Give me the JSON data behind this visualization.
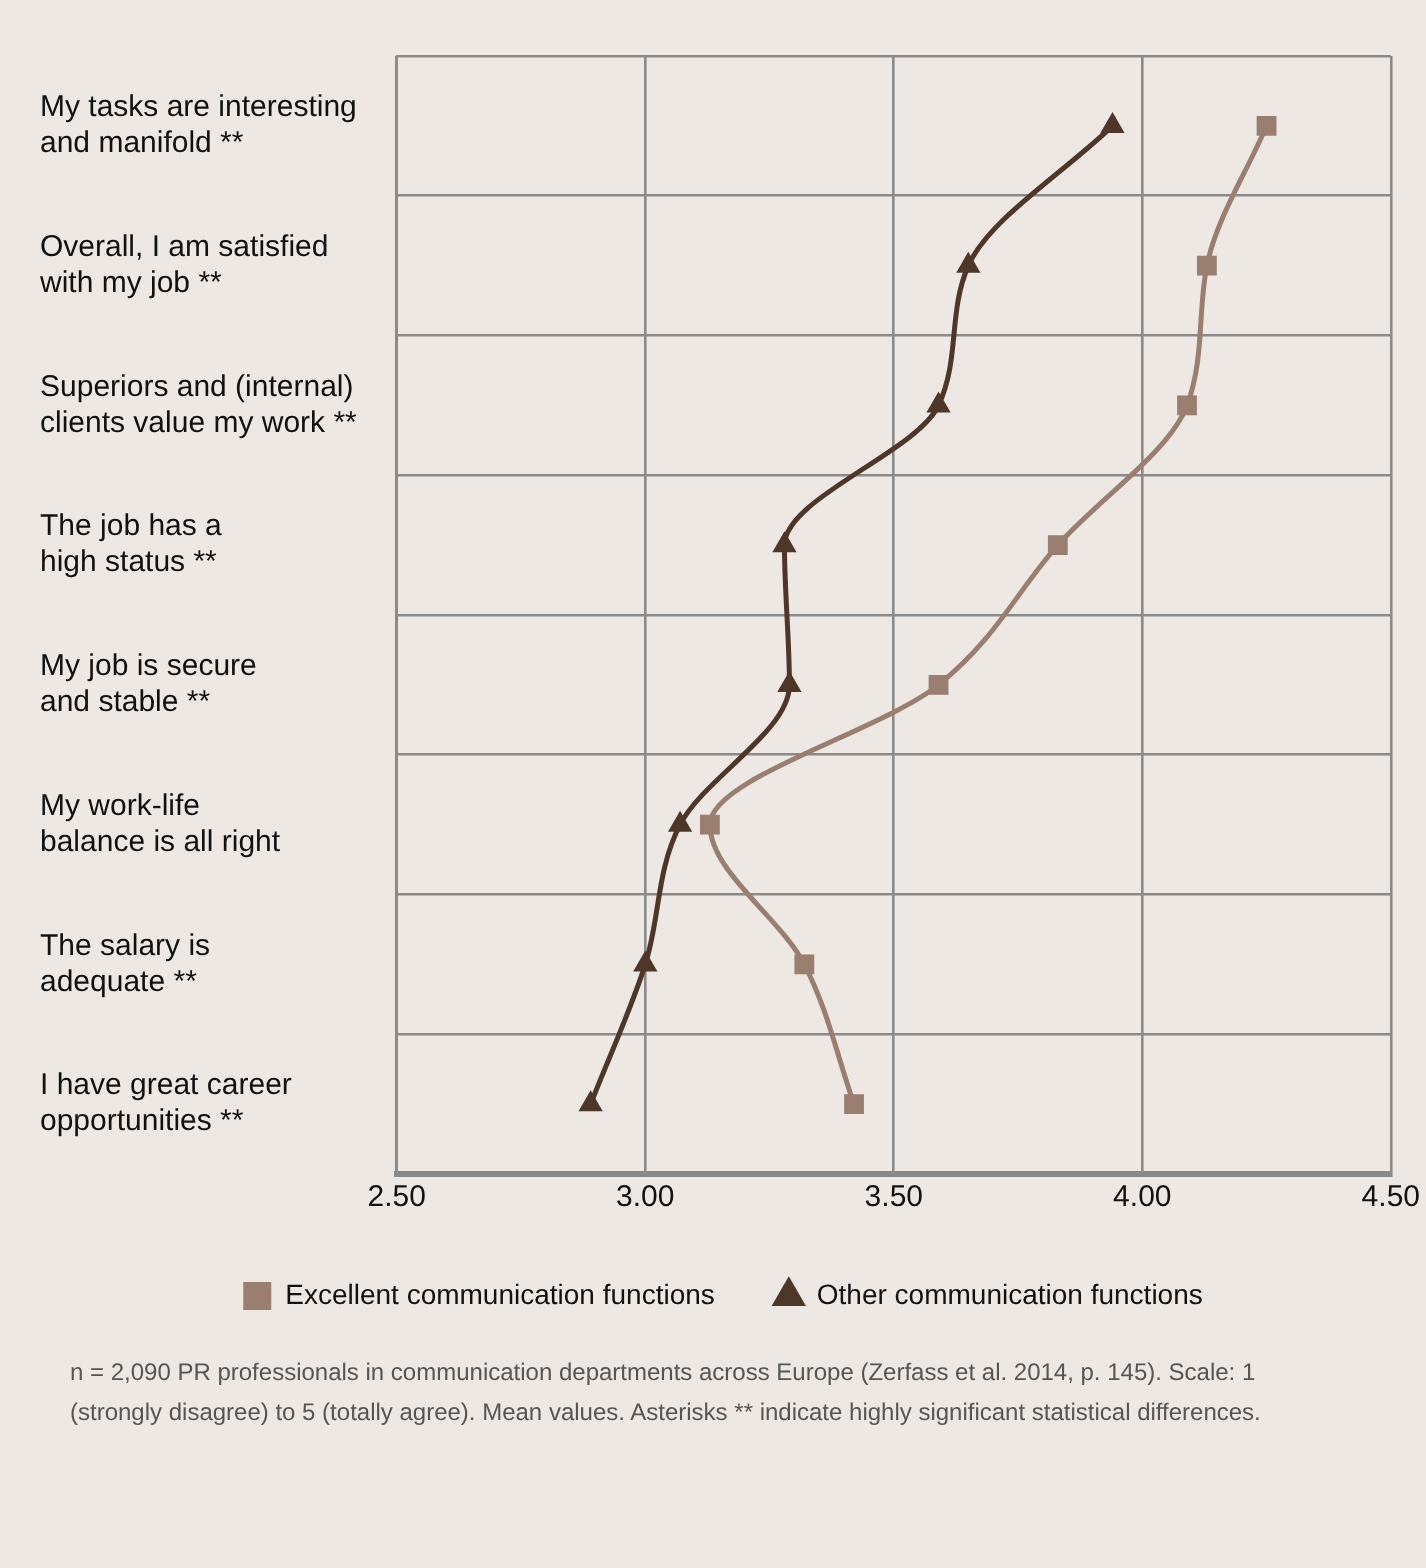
{
  "chart_data": {
    "type": "line",
    "orientation": "horizontal",
    "categories": [
      "My tasks are interesting and manifold **",
      "Overall, I am satisfied with my job **",
      "Superiors and (internal) clients value my work **",
      "The job has a high status **",
      "My job is secure and stable **",
      "My work-life balance is all right",
      "The salary is adequate **",
      "I have great career opportunities **"
    ],
    "series": [
      {
        "name": "Excellent communication functions",
        "color": "#9a7e70",
        "marker": "square",
        "values": [
          4.25,
          4.13,
          4.09,
          3.83,
          3.59,
          3.13,
          3.32,
          3.42
        ]
      },
      {
        "name": "Other communication functions",
        "color": "#4e3629",
        "marker": "triangle",
        "values": [
          3.94,
          3.65,
          3.59,
          3.28,
          3.29,
          3.07,
          3.0,
          2.89
        ]
      }
    ],
    "xlim": [
      2.5,
      4.5
    ],
    "xticks": [
      {
        "value": 2.5,
        "label": "2.50"
      },
      {
        "value": 3,
        "label": "3.00"
      },
      {
        "value": 3.5,
        "label": "3.50"
      },
      {
        "value": 4,
        "label": "4.00"
      },
      {
        "value": 4.5,
        "label": "4.50"
      }
    ],
    "grid": true,
    "legend": "bottom",
    "line_style": "solid",
    "annotations": [
      "n = 2,090 PR professionals in communication departments across Europe (Zerfass et al. 2014, p. 145). Scale: 1 (strongly disagree) to 5 (totally agree). Mean values. Asterisks ** indicate highly significant statistical differences."
    ]
  }
}
